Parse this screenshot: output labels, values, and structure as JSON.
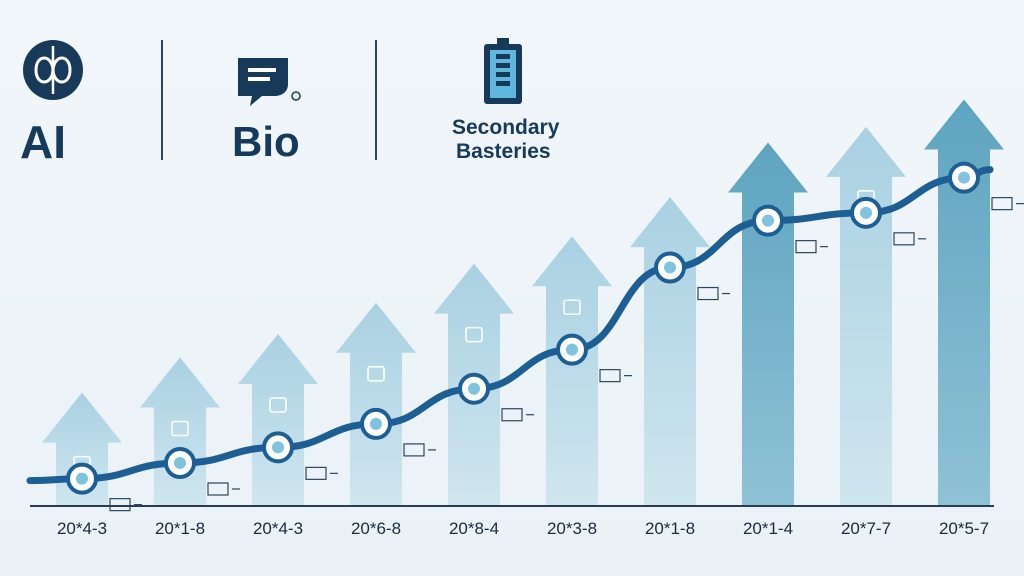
{
  "header": {
    "items": [
      {
        "label": "AI",
        "icon": "neural-loop-icon"
      },
      {
        "label": "Bio",
        "icon": "chat-bubble-icon"
      },
      {
        "label_line1": "Secondary",
        "label_line2": "Basteries",
        "icon": "battery-icon"
      }
    ]
  },
  "colors": {
    "line": "#1d5f95",
    "arrow_light": "#b9dbe8",
    "arrow_mid": "#8fc2d6",
    "arrow_dark": "#5ea4c0",
    "axis": "#2a3d50",
    "header_text": "#163a5c"
  },
  "chart_data": {
    "type": "bar",
    "categories": [
      "20*4-3",
      "20*1-8",
      "20*4-3",
      "20*6-8",
      "20*8-4",
      "20*3-8",
      "20*1-8",
      "20*1-4",
      "20*7-7",
      "20*5-7"
    ],
    "values": [
      29,
      38,
      44,
      52,
      62,
      69,
      79,
      93,
      97,
      104
    ],
    "line_values": [
      7,
      11,
      15,
      21,
      30,
      40,
      61,
      73,
      75,
      84
    ],
    "ylim": [
      0,
      110
    ],
    "grid": false,
    "title": "",
    "xlabel": "",
    "ylabel": ""
  }
}
